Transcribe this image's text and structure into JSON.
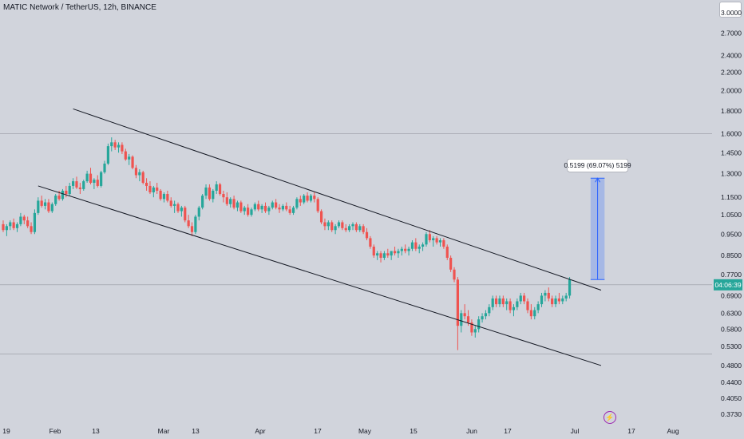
{
  "header": {
    "title": "MATIC Network / TetherUS, 12h, BINANCE"
  },
  "chart_data": {
    "type": "candlestick",
    "price_axis_ticks": [
      "3.0000",
      "2.7000",
      "2.4000",
      "2.2000",
      "2.0000",
      "1.8000",
      "1.6000",
      "1.4500",
      "1.3000",
      "1.1500",
      "1.0500",
      "0.9500",
      "0.8500",
      "0.7700",
      "0.6900",
      "0.6300",
      "0.5800",
      "0.5300",
      "0.4800",
      "0.4400",
      "0.4050",
      "0.3730"
    ],
    "time_axis_ticks": [
      "19",
      "Feb",
      "13",
      "Mar",
      "13",
      "Apr",
      "17",
      "May",
      "15",
      "Jun",
      "17",
      "Jul",
      "17",
      "Aug"
    ],
    "current_price_label": "04:06:39",
    "measure_label": "0.5199 (69.07%) 5199",
    "ylim": [
      0.373,
      3.0
    ],
    "y_scale": "log",
    "series": [
      {
        "values": [
          [
            1.0,
            1.02,
            0.96,
            0.97
          ],
          [
            0.97,
            1.0,
            0.94,
            0.99
          ],
          [
            0.99,
            1.02,
            0.97,
            1.01
          ],
          [
            1.01,
            1.03,
            0.97,
            0.98
          ],
          [
            0.98,
            1.01,
            0.96,
            1.0
          ],
          [
            1.0,
            1.06,
            0.99,
            1.04
          ],
          [
            1.04,
            1.05,
            1.0,
            1.02
          ],
          [
            1.02,
            1.04,
            0.98,
            0.99
          ],
          [
            0.99,
            1.01,
            0.95,
            0.96
          ],
          [
            0.96,
            1.08,
            0.95,
            1.06
          ],
          [
            1.06,
            1.15,
            1.05,
            1.13
          ],
          [
            1.13,
            1.16,
            1.09,
            1.1
          ],
          [
            1.1,
            1.14,
            1.08,
            1.12
          ],
          [
            1.12,
            1.14,
            1.06,
            1.07
          ],
          [
            1.07,
            1.12,
            1.06,
            1.11
          ],
          [
            1.11,
            1.17,
            1.1,
            1.16
          ],
          [
            1.16,
            1.19,
            1.13,
            1.14
          ],
          [
            1.14,
            1.2,
            1.13,
            1.19
          ],
          [
            1.19,
            1.22,
            1.15,
            1.17
          ],
          [
            1.17,
            1.24,
            1.16,
            1.22
          ],
          [
            1.22,
            1.27,
            1.2,
            1.25
          ],
          [
            1.25,
            1.28,
            1.2,
            1.21
          ],
          [
            1.21,
            1.24,
            1.17,
            1.2
          ],
          [
            1.2,
            1.26,
            1.19,
            1.25
          ],
          [
            1.25,
            1.32,
            1.24,
            1.3
          ],
          [
            1.3,
            1.34,
            1.23,
            1.24
          ],
          [
            1.24,
            1.27,
            1.2,
            1.26
          ],
          [
            1.26,
            1.29,
            1.21,
            1.22
          ],
          [
            1.22,
            1.32,
            1.21,
            1.31
          ],
          [
            1.31,
            1.39,
            1.3,
            1.37
          ],
          [
            1.37,
            1.52,
            1.36,
            1.5
          ],
          [
            1.5,
            1.57,
            1.46,
            1.53
          ],
          [
            1.53,
            1.55,
            1.47,
            1.49
          ],
          [
            1.49,
            1.53,
            1.45,
            1.51
          ],
          [
            1.51,
            1.53,
            1.44,
            1.46
          ],
          [
            1.46,
            1.48,
            1.39,
            1.4
          ],
          [
            1.4,
            1.44,
            1.36,
            1.42
          ],
          [
            1.42,
            1.43,
            1.33,
            1.34
          ],
          [
            1.34,
            1.36,
            1.27,
            1.29
          ],
          [
            1.29,
            1.33,
            1.25,
            1.31
          ],
          [
            1.31,
            1.32,
            1.23,
            1.24
          ],
          [
            1.24,
            1.27,
            1.19,
            1.22
          ],
          [
            1.22,
            1.25,
            1.17,
            1.18
          ],
          [
            1.18,
            1.22,
            1.15,
            1.21
          ],
          [
            1.21,
            1.24,
            1.17,
            1.19
          ],
          [
            1.19,
            1.2,
            1.13,
            1.14
          ],
          [
            1.14,
            1.18,
            1.12,
            1.17
          ],
          [
            1.17,
            1.19,
            1.12,
            1.13
          ],
          [
            1.13,
            1.15,
            1.09,
            1.1
          ],
          [
            1.1,
            1.13,
            1.06,
            1.11
          ],
          [
            1.11,
            1.12,
            1.06,
            1.07
          ],
          [
            1.07,
            1.1,
            1.04,
            1.09
          ],
          [
            1.09,
            1.1,
            1.01,
            1.02
          ],
          [
            1.02,
            1.05,
            0.98,
            0.99
          ],
          [
            0.99,
            1.01,
            0.94,
            0.96
          ],
          [
            0.96,
            1.05,
            0.95,
            1.04
          ],
          [
            1.04,
            1.1,
            1.02,
            1.09
          ],
          [
            1.09,
            1.17,
            1.08,
            1.16
          ],
          [
            1.16,
            1.23,
            1.14,
            1.21
          ],
          [
            1.21,
            1.23,
            1.13,
            1.14
          ],
          [
            1.14,
            1.2,
            1.12,
            1.19
          ],
          [
            1.19,
            1.25,
            1.17,
            1.23
          ],
          [
            1.23,
            1.24,
            1.16,
            1.17
          ],
          [
            1.17,
            1.19,
            1.12,
            1.15
          ],
          [
            1.15,
            1.18,
            1.1,
            1.11
          ],
          [
            1.11,
            1.15,
            1.09,
            1.14
          ],
          [
            1.14,
            1.16,
            1.08,
            1.09
          ],
          [
            1.09,
            1.13,
            1.07,
            1.12
          ],
          [
            1.12,
            1.13,
            1.06,
            1.07
          ],
          [
            1.07,
            1.1,
            1.05,
            1.09
          ],
          [
            1.09,
            1.11,
            1.04,
            1.05
          ],
          [
            1.05,
            1.09,
            1.04,
            1.08
          ],
          [
            1.08,
            1.12,
            1.07,
            1.11
          ],
          [
            1.11,
            1.13,
            1.07,
            1.08
          ],
          [
            1.08,
            1.11,
            1.06,
            1.1
          ],
          [
            1.1,
            1.12,
            1.06,
            1.07
          ],
          [
            1.07,
            1.1,
            1.05,
            1.09
          ],
          [
            1.09,
            1.13,
            1.08,
            1.12
          ],
          [
            1.12,
            1.14,
            1.08,
            1.09
          ],
          [
            1.09,
            1.11,
            1.06,
            1.08
          ],
          [
            1.08,
            1.11,
            1.07,
            1.1
          ],
          [
            1.1,
            1.12,
            1.07,
            1.08
          ],
          [
            1.08,
            1.1,
            1.05,
            1.06
          ],
          [
            1.06,
            1.1,
            1.05,
            1.09
          ],
          [
            1.09,
            1.15,
            1.08,
            1.14
          ],
          [
            1.14,
            1.16,
            1.1,
            1.12
          ],
          [
            1.12,
            1.17,
            1.11,
            1.16
          ],
          [
            1.16,
            1.18,
            1.12,
            1.13
          ],
          [
            1.13,
            1.17,
            1.12,
            1.16
          ],
          [
            1.16,
            1.18,
            1.12,
            1.14
          ],
          [
            1.14,
            1.15,
            1.06,
            1.07
          ],
          [
            1.07,
            1.08,
            1.0,
            1.01
          ],
          [
            1.01,
            1.03,
            0.97,
            0.99
          ],
          [
            0.99,
            1.02,
            0.97,
            1.01
          ],
          [
            1.01,
            1.02,
            0.96,
            0.97
          ],
          [
            0.97,
            1.0,
            0.95,
            0.99
          ],
          [
            0.99,
            1.02,
            0.98,
            1.01
          ],
          [
            1.01,
            1.02,
            0.97,
            0.98
          ],
          [
            0.98,
            1.0,
            0.96,
            0.97
          ],
          [
            0.97,
            1.0,
            0.96,
            0.99
          ],
          [
            0.99,
            1.01,
            0.97,
            1.0
          ],
          [
            1.0,
            1.01,
            0.96,
            0.97
          ],
          [
            0.97,
            1.0,
            0.96,
            0.99
          ],
          [
            0.99,
            1.0,
            0.95,
            0.96
          ],
          [
            0.96,
            0.98,
            0.92,
            0.93
          ],
          [
            0.93,
            0.94,
            0.88,
            0.89
          ],
          [
            0.89,
            0.9,
            0.84,
            0.85
          ],
          [
            0.85,
            0.87,
            0.83,
            0.86
          ],
          [
            0.86,
            0.87,
            0.82,
            0.84
          ],
          [
            0.84,
            0.87,
            0.83,
            0.86
          ],
          [
            0.86,
            0.88,
            0.84,
            0.85
          ],
          [
            0.85,
            0.87,
            0.83,
            0.87
          ],
          [
            0.87,
            0.89,
            0.85,
            0.86
          ],
          [
            0.86,
            0.88,
            0.84,
            0.87
          ],
          [
            0.87,
            0.89,
            0.85,
            0.88
          ],
          [
            0.88,
            0.9,
            0.86,
            0.87
          ],
          [
            0.87,
            0.89,
            0.85,
            0.88
          ],
          [
            0.88,
            0.92,
            0.87,
            0.91
          ],
          [
            0.91,
            0.93,
            0.87,
            0.88
          ],
          [
            0.88,
            0.9,
            0.86,
            0.89
          ],
          [
            0.89,
            0.91,
            0.87,
            0.9
          ],
          [
            0.9,
            0.96,
            0.89,
            0.95
          ],
          [
            0.95,
            0.97,
            0.91,
            0.92
          ],
          [
            0.92,
            0.94,
            0.89,
            0.93
          ],
          [
            0.93,
            0.94,
            0.9,
            0.91
          ],
          [
            0.91,
            0.93,
            0.89,
            0.92
          ],
          [
            0.92,
            0.93,
            0.88,
            0.89
          ],
          [
            0.89,
            0.9,
            0.83,
            0.84
          ],
          [
            0.84,
            0.85,
            0.78,
            0.79
          ],
          [
            0.79,
            0.8,
            0.74,
            0.75
          ],
          [
            0.75,
            0.76,
            0.52,
            0.59
          ],
          [
            0.59,
            0.64,
            0.57,
            0.63
          ],
          [
            0.63,
            0.66,
            0.61,
            0.62
          ],
          [
            0.62,
            0.64,
            0.59,
            0.6
          ],
          [
            0.6,
            0.61,
            0.56,
            0.57
          ],
          [
            0.57,
            0.59,
            0.555,
            0.58
          ],
          [
            0.58,
            0.62,
            0.57,
            0.61
          ],
          [
            0.61,
            0.63,
            0.6,
            0.62
          ],
          [
            0.62,
            0.64,
            0.61,
            0.63
          ],
          [
            0.63,
            0.66,
            0.62,
            0.65
          ],
          [
            0.65,
            0.69,
            0.64,
            0.68
          ],
          [
            0.68,
            0.69,
            0.65,
            0.66
          ],
          [
            0.66,
            0.69,
            0.65,
            0.68
          ],
          [
            0.68,
            0.69,
            0.65,
            0.66
          ],
          [
            0.66,
            0.68,
            0.64,
            0.67
          ],
          [
            0.67,
            0.68,
            0.63,
            0.64
          ],
          [
            0.64,
            0.66,
            0.62,
            0.65
          ],
          [
            0.65,
            0.68,
            0.64,
            0.67
          ],
          [
            0.67,
            0.7,
            0.66,
            0.69
          ],
          [
            0.69,
            0.7,
            0.66,
            0.67
          ],
          [
            0.67,
            0.68,
            0.63,
            0.64
          ],
          [
            0.64,
            0.66,
            0.61,
            0.62
          ],
          [
            0.62,
            0.65,
            0.61,
            0.64
          ],
          [
            0.64,
            0.67,
            0.63,
            0.66
          ],
          [
            0.66,
            0.7,
            0.65,
            0.69
          ],
          [
            0.69,
            0.71,
            0.67,
            0.7
          ],
          [
            0.7,
            0.72,
            0.67,
            0.68
          ],
          [
            0.68,
            0.69,
            0.65,
            0.66
          ],
          [
            0.66,
            0.69,
            0.65,
            0.68
          ],
          [
            0.68,
            0.7,
            0.66,
            0.67
          ],
          [
            0.67,
            0.69,
            0.66,
            0.68
          ],
          [
            0.68,
            0.7,
            0.67,
            0.69
          ],
          [
            0.69,
            0.76,
            0.68,
            0.75
          ]
        ]
      }
    ],
    "channel": [
      {
        "name": "upper",
        "from": {
          "index": 20,
          "price": 1.82
        },
        "to": {
          "index": 171,
          "price": 0.71
        }
      },
      {
        "name": "lower",
        "from": {
          "index": 10,
          "price": 1.22
        },
        "to": {
          "index": 171,
          "price": 0.48
        }
      }
    ],
    "horizontal_lines": [
      1.6,
      0.73,
      0.51
    ],
    "measure": {
      "from_price": 0.75,
      "to_price": 1.27,
      "from_index": 168,
      "to_index": 172
    }
  }
}
